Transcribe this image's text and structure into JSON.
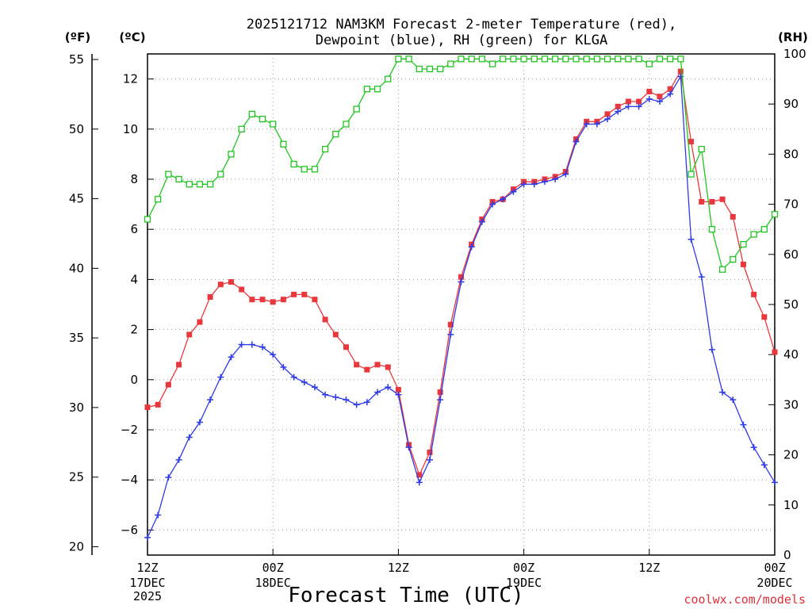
{
  "chart_data": {
    "type": "line",
    "title_line1": "2025121712 NAM3KM Forecast 2-meter Temperature (red),",
    "title_line2": "Dewpoint (blue), RH (green) for KLGA",
    "unit_left_f": "(ºF)",
    "unit_left_c": "(ºC)",
    "unit_right": "(RH)",
    "xlabel": "Forecast Time (UTC)",
    "credit": "coolwx.com/models",
    "hours_range": [
      0,
      60
    ],
    "celsius_range": [
      -7,
      13
    ],
    "fahrenheit_range": [
      19.4,
      55.4
    ],
    "rh_range": [
      0,
      100
    ],
    "celsius_ticks": [
      "12",
      "10",
      "8",
      "6",
      "4",
      "2",
      "0",
      "−2",
      "−4",
      "−6"
    ],
    "celsius_tick_values": [
      12,
      10,
      8,
      6,
      4,
      2,
      0,
      -2,
      -4,
      -6
    ],
    "fahrenheit_ticks": [
      "55",
      "50",
      "45",
      "40",
      "35",
      "30",
      "25",
      "20"
    ],
    "fahrenheit_tick_values": [
      55,
      50,
      45,
      40,
      35,
      30,
      25,
      20
    ],
    "rh_ticks": [
      "100",
      "90",
      "80",
      "70",
      "60",
      "50",
      "40",
      "30",
      "20",
      "10",
      "0"
    ],
    "rh_tick_values": [
      100,
      90,
      80,
      70,
      60,
      50,
      40,
      30,
      20,
      10,
      0
    ],
    "x_ticks": [
      {
        "hour": 0,
        "l1": "12Z",
        "l2": "17DEC",
        "l3": "2025"
      },
      {
        "hour": 12,
        "l1": "00Z",
        "l2": "18DEC",
        "l3": ""
      },
      {
        "hour": 24,
        "l1": "12Z",
        "l2": "",
        "l3": ""
      },
      {
        "hour": 36,
        "l1": "00Z",
        "l2": "19DEC",
        "l3": ""
      },
      {
        "hour": 48,
        "l1": "12Z",
        "l2": "",
        "l3": ""
      },
      {
        "hour": 60,
        "l1": "00Z",
        "l2": "20DEC",
        "l3": ""
      }
    ],
    "series": [
      {
        "name": "2-meter Temperature (°C)",
        "color": "#e8383d",
        "marker": "filled-square",
        "axis": "celsius",
        "hours": [
          0,
          1,
          2,
          3,
          4,
          5,
          6,
          7,
          8,
          9,
          10,
          11,
          12,
          13,
          14,
          15,
          16,
          17,
          18,
          19,
          20,
          21,
          22,
          23,
          24,
          25,
          26,
          27,
          28,
          29,
          30,
          31,
          32,
          33,
          34,
          35,
          36,
          37,
          38,
          39,
          40,
          41,
          42,
          43,
          44,
          45,
          46,
          47,
          48,
          49,
          50,
          51,
          52,
          53,
          54,
          55,
          56,
          57,
          58,
          59,
          60
        ],
        "values": [
          -1.1,
          -1.0,
          -0.2,
          0.6,
          1.8,
          2.3,
          3.3,
          3.8,
          3.9,
          3.6,
          3.2,
          3.2,
          3.1,
          3.2,
          3.4,
          3.4,
          3.2,
          2.4,
          1.8,
          1.3,
          0.6,
          0.4,
          0.6,
          0.5,
          -0.4,
          -2.6,
          -3.8,
          -2.9,
          -0.5,
          2.2,
          4.1,
          5.4,
          6.4,
          7.1,
          7.2,
          7.6,
          7.9,
          7.9,
          8.0,
          8.1,
          8.3,
          9.6,
          10.3,
          10.3,
          10.6,
          10.9,
          11.1,
          11.1,
          11.5,
          11.3,
          11.6,
          12.3,
          9.5,
          7.1,
          7.1,
          7.2,
          6.5,
          4.6,
          3.4,
          2.5,
          1.1
        ]
      },
      {
        "name": "Dewpoint (°C)",
        "color": "#2d3ae6",
        "marker": "plus",
        "axis": "celsius",
        "hours": [
          0,
          1,
          2,
          3,
          4,
          5,
          6,
          7,
          8,
          9,
          10,
          11,
          12,
          13,
          14,
          15,
          16,
          17,
          18,
          19,
          20,
          21,
          22,
          23,
          24,
          25,
          26,
          27,
          28,
          29,
          30,
          31,
          32,
          33,
          34,
          35,
          36,
          37,
          38,
          39,
          40,
          41,
          42,
          43,
          44,
          45,
          46,
          47,
          48,
          49,
          50,
          51,
          52,
          53,
          54,
          55,
          56,
          57,
          58,
          59,
          60
        ],
        "values": [
          -6.3,
          -5.4,
          -3.9,
          -3.2,
          -2.3,
          -1.7,
          -0.8,
          0.1,
          0.9,
          1.4,
          1.4,
          1.3,
          1.0,
          0.5,
          0.1,
          -0.1,
          -0.3,
          -0.6,
          -0.7,
          -0.8,
          -1.0,
          -0.9,
          -0.5,
          -0.3,
          -0.6,
          -2.7,
          -4.1,
          -3.2,
          -0.8,
          1.8,
          3.9,
          5.3,
          6.3,
          7.0,
          7.2,
          7.5,
          7.8,
          7.8,
          7.9,
          8.0,
          8.2,
          9.5,
          10.2,
          10.2,
          10.4,
          10.7,
          10.9,
          10.9,
          11.2,
          11.1,
          11.4,
          12.1,
          5.6,
          4.1,
          1.2,
          -0.5,
          -0.8,
          -1.8,
          -2.7,
          -3.4,
          -4.1
        ]
      },
      {
        "name": "Relative Humidity (%)",
        "color": "#22c422",
        "marker": "open-square",
        "axis": "rh",
        "hours": [
          0,
          1,
          2,
          3,
          4,
          5,
          6,
          7,
          8,
          9,
          10,
          11,
          12,
          13,
          14,
          15,
          16,
          17,
          18,
          19,
          20,
          21,
          22,
          23,
          24,
          25,
          26,
          27,
          28,
          29,
          30,
          31,
          32,
          33,
          34,
          35,
          36,
          37,
          38,
          39,
          40,
          41,
          42,
          43,
          44,
          45,
          46,
          47,
          48,
          49,
          50,
          51,
          52,
          53,
          54,
          55,
          56,
          57,
          58,
          59,
          60
        ],
        "values": [
          67,
          71,
          76,
          75,
          74,
          74,
          74,
          76,
          80,
          85,
          88,
          87,
          86,
          82,
          78,
          77,
          77,
          81,
          84,
          86,
          89,
          93,
          93,
          95,
          99,
          99,
          97,
          97,
          97,
          98,
          99,
          99,
          99,
          98,
          99,
          99,
          99,
          99,
          99,
          99,
          99,
          99,
          99,
          99,
          99,
          99,
          99,
          99,
          98,
          99,
          99,
          99,
          76,
          81,
          65,
          57,
          59,
          62,
          64,
          65,
          68
        ]
      }
    ]
  }
}
